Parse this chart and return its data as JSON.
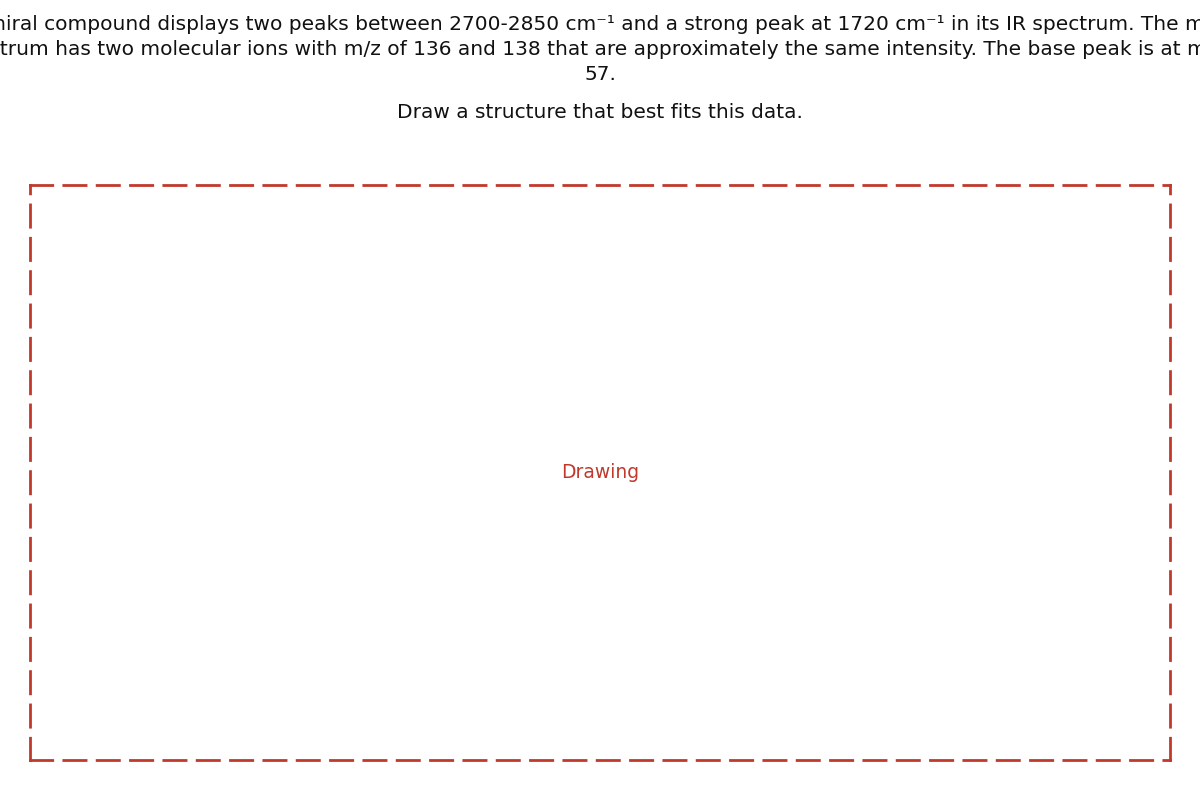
{
  "title_line1": "A chiral compound displays two peaks between 2700-2850 cm⁻¹ and a strong peak at 1720 cm⁻¹ in its IR spectrum. The mass",
  "title_line2": "spectrum has two molecular ions with m/z of 136 and 138 that are approximately the same intensity. The base peak is at m/z =",
  "title_line3": "57.",
  "subtitle": "Draw a structure that best fits this data.",
  "drawing_label": "Drawing",
  "bg_color": "#ffffff",
  "text_color": "#111111",
  "red_color": "#c0392b",
  "box_border_color": "#c0392b",
  "title_fontsize": 14.5,
  "subtitle_fontsize": 14.5,
  "drawing_fontsize": 13.5,
  "fig_width": 12.0,
  "fig_height": 7.93,
  "fig_dpi": 100
}
